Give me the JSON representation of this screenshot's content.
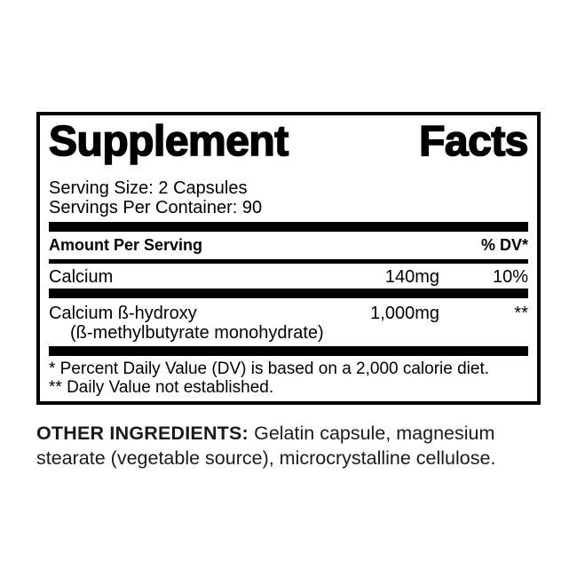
{
  "panel": {
    "title": {
      "word1": "Supplement",
      "word2": "Facts"
    },
    "serving": {
      "size_line": "Serving Size: 2 Capsules",
      "container_line": "Servings Per Container: 90"
    },
    "table": {
      "header": {
        "amount_label": "Amount Per Serving",
        "dv_label": "% DV*"
      },
      "rows": [
        {
          "name": "Calcium",
          "amount": "140mg",
          "dv": "10%"
        },
        {
          "name": "Calcium ß-hydroxy",
          "subline": "(ß-methylbutyrate monohydrate)",
          "amount": "1,000mg",
          "dv": "**"
        }
      ]
    },
    "footnotes": [
      "* Percent Daily Value (DV) is based on a 2,000 calorie diet.",
      "** Daily Value not established."
    ]
  },
  "other_ingredients": {
    "label": "OTHER INGREDIENTS: ",
    "text": "Gelatin capsule, magnesium stearate (vegetable source), microcrystalline cellulose."
  },
  "colors": {
    "ink": "#000000",
    "background": "#ffffff",
    "other_ingredients_ink": "#1a1a1a"
  }
}
